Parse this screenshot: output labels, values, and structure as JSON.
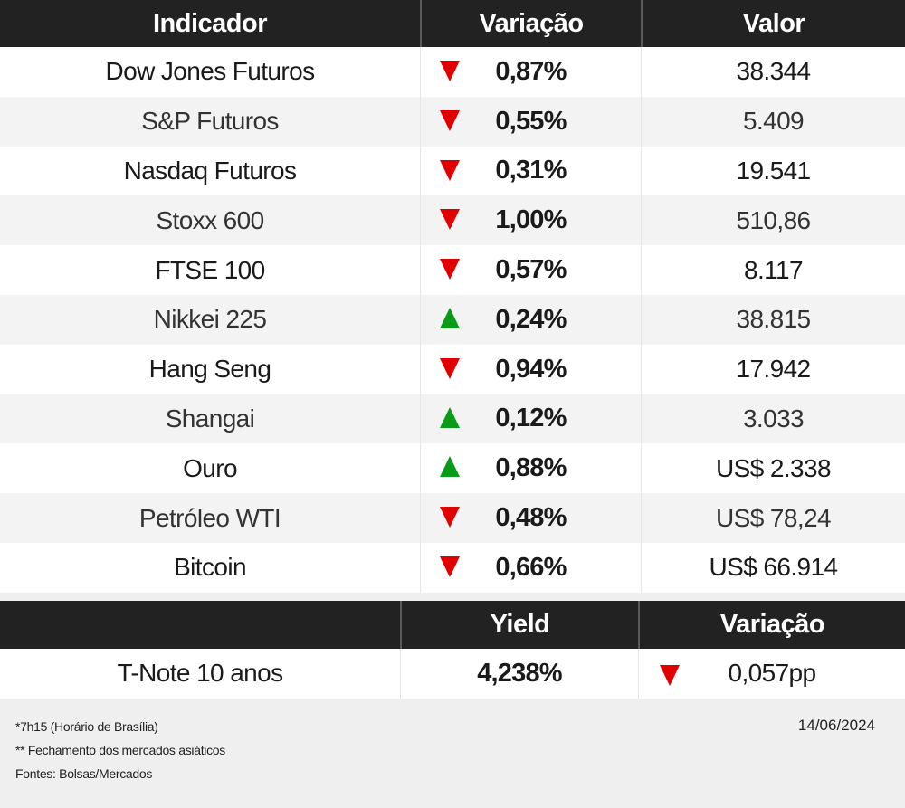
{
  "colors": {
    "header_bg": "#222222",
    "row_alt_bg": "#f3f3f3",
    "up": "#0a9a1a",
    "down": "#e00000",
    "footer_bg": "#efefef"
  },
  "main_table": {
    "headers": [
      "Indicador",
      "Variação",
      "Valor"
    ],
    "rows": [
      {
        "indicator": "Dow Jones Futuros",
        "direction": "down",
        "change": "0,87%",
        "value": "38.344"
      },
      {
        "indicator": "S&P Futuros",
        "direction": "down",
        "change": "0,55%",
        "value": "5.409"
      },
      {
        "indicator": "Nasdaq Futuros",
        "direction": "down",
        "change": "0,31%",
        "value": "19.541"
      },
      {
        "indicator": "Stoxx 600",
        "direction": "down",
        "change": "1,00%",
        "value": "510,86"
      },
      {
        "indicator": "FTSE 100",
        "direction": "down",
        "change": "0,57%",
        "value": "8.117"
      },
      {
        "indicator": "Nikkei 225",
        "direction": "up",
        "change": "0,24%",
        "value": "38.815"
      },
      {
        "indicator": "Hang Seng",
        "direction": "down",
        "change": "0,94%",
        "value": "17.942"
      },
      {
        "indicator": "Shangai",
        "direction": "up",
        "change": "0,12%",
        "value": "3.033"
      },
      {
        "indicator": "Ouro",
        "direction": "up",
        "change": "0,88%",
        "value": "US$ 2.338"
      },
      {
        "indicator": "Petróleo WTI",
        "direction": "down",
        "change": "0,48%",
        "value": "US$ 78,24"
      },
      {
        "indicator": "Bitcoin",
        "direction": "down",
        "change": "0,66%",
        "value": "US$ 66.914"
      }
    ]
  },
  "bond_table": {
    "headers": [
      "",
      "Yield",
      "Variação"
    ],
    "rows": [
      {
        "indicator": "T-Note 10 anos",
        "yield": "4,238%",
        "direction": "down",
        "change": "0,057pp"
      }
    ]
  },
  "footer": {
    "notes": [
      "*7h15 (Horário  de Brasília)",
      "** Fechamento dos mercados asiáticos",
      "Fontes: Bolsas/Mercados"
    ],
    "date": "14/06/2024"
  }
}
